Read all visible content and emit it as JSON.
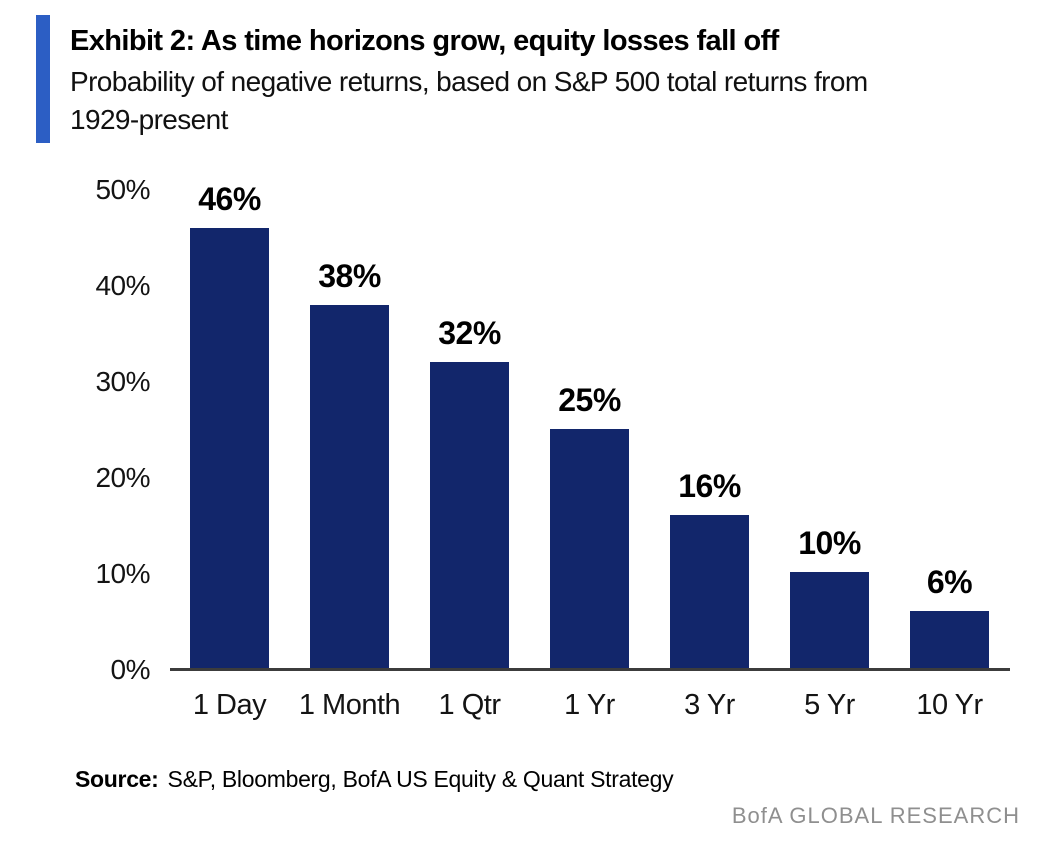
{
  "header": {
    "accent_color": "#2c5ec4",
    "title": "Exhibit 2: As time horizons grow, equity losses fall off",
    "subtitle_lines": [
      "Probability of negative returns, based on S&P 500 total returns from",
      "1929-present"
    ]
  },
  "chart_data": {
    "type": "bar",
    "title": "Exhibit 2: As time horizons grow, equity losses fall off",
    "subtitle": "Probability of negative returns, based on S&P 500 total returns from 1929-present",
    "categories": [
      "1 Day",
      "1 Month",
      "1 Qtr",
      "1 Yr",
      "3 Yr",
      "5 Yr",
      "10 Yr"
    ],
    "values": [
      46,
      38,
      32,
      25,
      16,
      10,
      6
    ],
    "value_labels": [
      "46%",
      "38%",
      "32%",
      "25%",
      "16%",
      "10%",
      "6%"
    ],
    "y_ticks": [
      "50%",
      "40%",
      "30%",
      "20%",
      "10%",
      "0%"
    ],
    "ylim": [
      0,
      50
    ],
    "xlabel": "",
    "ylabel": "",
    "grid": "off",
    "legend": "none",
    "bar_color": "#12266b",
    "axis_line_color": "#3c3c3c"
  },
  "footer": {
    "source_label": "Source:",
    "source_text": "S&P, Bloomberg, BofA US Equity & Quant Strategy",
    "brand": "BofA GLOBAL RESEARCH",
    "brand_color": "#8f8f8f"
  }
}
